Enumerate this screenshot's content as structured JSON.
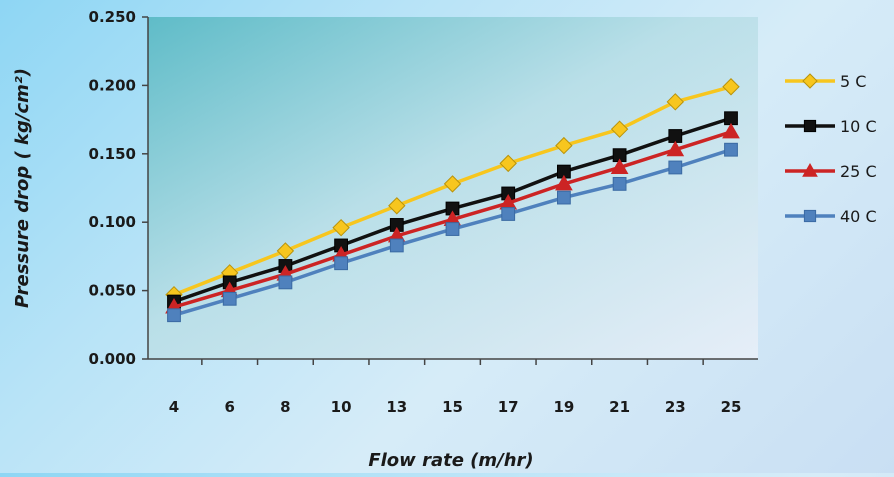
{
  "chart_data": {
    "type": "line",
    "title": "",
    "xlabel": "Flow rate (m/hr)",
    "ylabel": "Pressure drop ( kg/cm²)",
    "x": [
      "4",
      "6",
      "8",
      "10",
      "13",
      "15",
      "17",
      "19",
      "21",
      "23",
      "25"
    ],
    "ylim": [
      0,
      0.25
    ],
    "yticks": [
      "0.000",
      "0.050",
      "0.100",
      "0.150",
      "0.200",
      "0.250"
    ],
    "grid": false,
    "legend_position": "right",
    "series": [
      {
        "name": "5 C",
        "color": "#f7c61e",
        "marker": "diamond",
        "values": [
          0.047,
          0.063,
          0.079,
          0.096,
          0.112,
          0.128,
          0.143,
          0.156,
          0.168,
          0.188,
          0.199
        ]
      },
      {
        "name": "10 C",
        "color": "#111111",
        "marker": "square",
        "values": [
          0.042,
          0.056,
          0.068,
          0.083,
          0.098,
          0.11,
          0.121,
          0.137,
          0.149,
          0.163,
          0.176
        ]
      },
      {
        "name": "25 C",
        "color": "#cc2424",
        "marker": "triangle",
        "values": [
          0.038,
          0.05,
          0.062,
          0.076,
          0.09,
          0.102,
          0.114,
          0.128,
          0.14,
          0.153,
          0.166
        ]
      },
      {
        "name": "40 C",
        "color": "#4f81bd",
        "marker": "square",
        "values": [
          0.032,
          0.044,
          0.056,
          0.07,
          0.083,
          0.095,
          0.106,
          0.118,
          0.128,
          0.14,
          0.153
        ]
      }
    ]
  }
}
